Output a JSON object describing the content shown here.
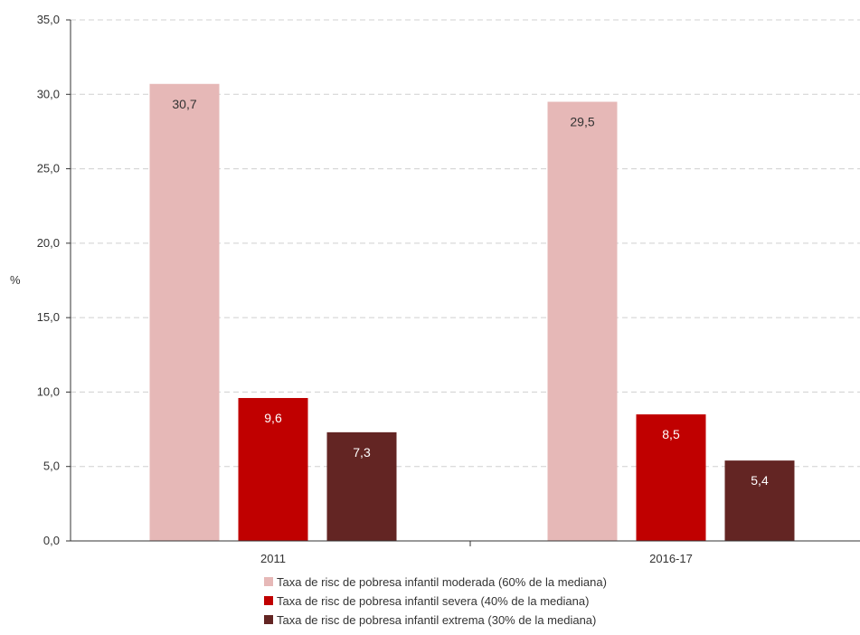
{
  "chart_data": {
    "type": "bar",
    "categories": [
      "2011",
      "2016-17"
    ],
    "series": [
      {
        "name": "Taxa de risc de pobresa infantil moderada (60% de la mediana)",
        "values": [
          30.7,
          29.5
        ],
        "labels": [
          "30,7",
          "29,5"
        ],
        "color": "#e6b8b7",
        "label_color": "#333333"
      },
      {
        "name": "Taxa de risc de pobresa infantil severa (40% de la mediana)",
        "values": [
          9.6,
          8.5
        ],
        "labels": [
          "9,6",
          "8,5"
        ],
        "color": "#c00000",
        "label_color": "#ffffff"
      },
      {
        "name": "Taxa de risc de pobresa infantil extrema (30% de la mediana)",
        "values": [
          7.3,
          5.4
        ],
        "labels": [
          "7,3",
          "5,4"
        ],
        "color": "#632523",
        "label_color": "#ffffff"
      }
    ],
    "ylabel": "%",
    "ylim": [
      0,
      35
    ],
    "yticks": [
      0,
      5,
      10,
      15,
      20,
      25,
      30,
      35
    ],
    "ytick_labels": [
      "0,0",
      "5,0",
      "10,0",
      "15,0",
      "20,0",
      "25,0",
      "30,0",
      "35,0"
    ],
    "grid": true,
    "legend_position": "bottom"
  }
}
